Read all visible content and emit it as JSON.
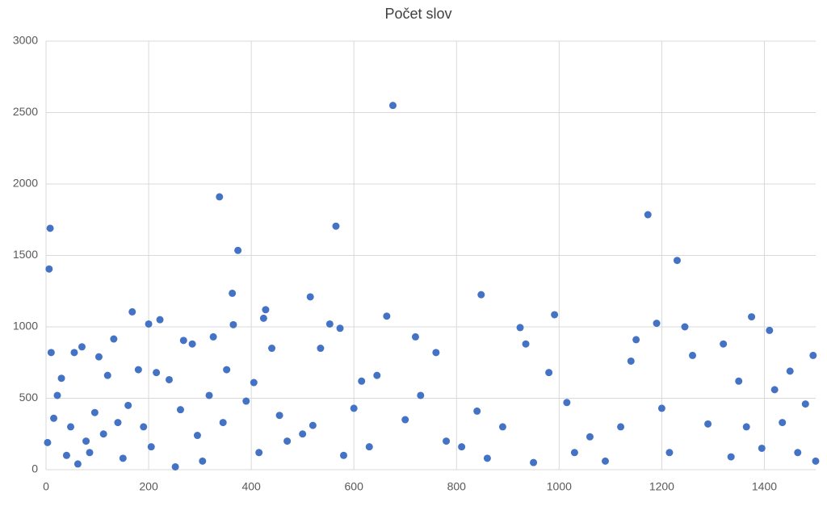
{
  "chart_data": {
    "type": "scatter",
    "title": "Počet slov",
    "color": "#4472c4",
    "grid": true,
    "xlim": [
      0,
      1500
    ],
    "xticks": [
      0,
      200,
      400,
      600,
      800,
      1000,
      1200,
      1400
    ],
    "ylim": [
      0,
      3000
    ],
    "yticks": [
      0,
      500,
      1000,
      1500,
      2000,
      2500,
      3000
    ],
    "x": [
      676,
      338,
      565,
      8,
      1173,
      374,
      1230,
      6,
      363,
      848,
      515,
      168,
      428,
      991,
      664,
      1375,
      222,
      424,
      200,
      365,
      553,
      1190,
      1245,
      573,
      924,
      1410,
      720,
      326,
      132,
      1150,
      268,
      3,
      10,
      15,
      22,
      30,
      40,
      48,
      55,
      62,
      70,
      78,
      85,
      95,
      103,
      112,
      120,
      140,
      150,
      160,
      180,
      190,
      205,
      215,
      240,
      252,
      262,
      285,
      295,
      305,
      318,
      345,
      352,
      390,
      405,
      415,
      440,
      455,
      470,
      500,
      520,
      535,
      580,
      600,
      615,
      630,
      645,
      700,
      730,
      760,
      780,
      810,
      840,
      860,
      890,
      935,
      950,
      980,
      1015,
      1030,
      1060,
      1090,
      1120,
      1140,
      1200,
      1215,
      1260,
      1290,
      1320,
      1335,
      1350,
      1365,
      1395,
      1420,
      1435,
      1450,
      1465,
      1480,
      1495,
      1500
    ],
    "values": [
      2550,
      1910,
      1705,
      1690,
      1785,
      1535,
      1465,
      1405,
      1235,
      1225,
      1210,
      1105,
      1120,
      1085,
      1075,
      1070,
      1050,
      1060,
      1020,
      1015,
      1020,
      1025,
      1000,
      990,
      995,
      975,
      930,
      930,
      915,
      910,
      905,
      190,
      820,
      360,
      520,
      640,
      100,
      300,
      820,
      40,
      860,
      200,
      120,
      400,
      790,
      250,
      660,
      330,
      80,
      450,
      700,
      300,
      160,
      680,
      630,
      20,
      420,
      880,
      240,
      60,
      520,
      330,
      700,
      480,
      610,
      120,
      850,
      380,
      200,
      250,
      310,
      850,
      100,
      430,
      620,
      160,
      660,
      350,
      520,
      820,
      200,
      160,
      410,
      80,
      300,
      880,
      50,
      680,
      470,
      120,
      230,
      60,
      300,
      760,
      430,
      120,
      800,
      320,
      880,
      90,
      620,
      300,
      150,
      560,
      330,
      690,
      120,
      460,
      800,
      60
    ]
  }
}
